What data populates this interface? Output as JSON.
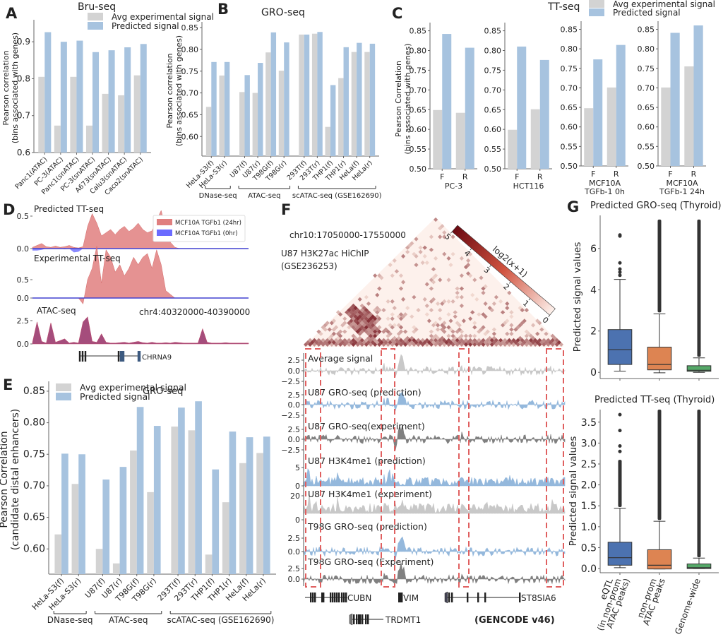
{
  "colors": {
    "experimental": "#d3d3d3",
    "predicted": "#a7c3df",
    "tt24": "#e07f7f",
    "tt0": "#6b6bff",
    "atac": "#9b3a6e",
    "box_eqtl": "#4c72b0",
    "box_nonprom": "#dd8452",
    "box_genome": "#55a868",
    "dashed_box": "#e06060",
    "track_avg": "#c8c8c8",
    "track_pred": "#94b8dc",
    "track_exp": "#808080"
  },
  "chart_data": [
    {
      "id": "A",
      "panel_letter": "A",
      "type": "bar",
      "title": "Bru-seq",
      "xlabel": "",
      "ylabel": "Pearson correlation\n(bins associated with genes)",
      "ylabel_lines": [
        "Pearson correlation",
        "(bins associated with genes)"
      ],
      "ylim": [
        0.6,
        0.95
      ],
      "yticks": [
        0.6,
        0.7,
        0.8,
        0.9
      ],
      "ytick_labels": [
        "0.6",
        "0.7",
        "0.8",
        "0.9"
      ],
      "legend": [
        "Avg experimental signal",
        "Predicted signal"
      ],
      "legend_position": "top-right",
      "categories": [
        "Panc1(ATAC)",
        "PC-3(ATAC)",
        "Panc1(snATAC)",
        "PC-3(snATAC)",
        "A673(snATAC)",
        "Calu3(snATAC)",
        "Caco2(snATAC)"
      ],
      "series": [
        {
          "name": "Avg experimental signal",
          "values": [
            0.805,
            0.673,
            0.805,
            0.673,
            0.759,
            0.755,
            0.809
          ]
        },
        {
          "name": "Predicted signal",
          "values": [
            0.926,
            0.9,
            0.903,
            0.872,
            0.877,
            0.885,
            0.894
          ]
        }
      ]
    },
    {
      "id": "B",
      "panel_letter": "B",
      "type": "bar",
      "title": "GRO-seq",
      "xlabel": "",
      "ylabel_lines": [
        "Pearson correlation",
        "(bins associated with genes)"
      ],
      "ylim": [
        0.555,
        0.855
      ],
      "yticks": [
        0.6,
        0.65,
        0.7,
        0.75,
        0.8,
        0.85
      ],
      "ytick_labels": [
        "0.60",
        "0.65",
        "0.70",
        "0.75",
        "0.80",
        "0.85"
      ],
      "categories": [
        "HeLa-S3(f)",
        "HeLa-S3(r)",
        "U87(f)",
        "U87(r)",
        "T98G(f)",
        "T98G(r)",
        "293T(f)",
        "293T(r)",
        "THP1(f)",
        "THP1(r)",
        "HeLa(f)",
        "HeLa(r)"
      ],
      "groups": [
        {
          "label": "DNase-seq",
          "members": [
            0,
            1
          ]
        },
        {
          "label": "ATAC-seq",
          "members": [
            2,
            3,
            4,
            5
          ]
        },
        {
          "label": "scATAC-seq (GSE162690)",
          "members": [
            6,
            7,
            8,
            9,
            10,
            11
          ]
        }
      ],
      "series": [
        {
          "name": "Avg experimental signal",
          "values": [
            0.668,
            0.74,
            0.702,
            0.7,
            0.793,
            0.751,
            0.834,
            0.836,
            0.622,
            0.734,
            0.794,
            0.794
          ]
        },
        {
          "name": "Predicted signal",
          "values": [
            0.771,
            0.771,
            0.741,
            0.769,
            0.839,
            0.816,
            0.834,
            0.84,
            0.718,
            0.805,
            0.815,
            0.813
          ]
        }
      ]
    },
    {
      "id": "C",
      "panel_letter": "C",
      "type": "bar",
      "title": "TT-seq",
      "ylabel_lines": [
        "Pearson Correlation",
        "(bins associated with genes)"
      ],
      "legend": [
        "Avg experimental signal",
        "Predicted signal"
      ],
      "legend_position": "top-right",
      "ylim": [
        0.5,
        0.86
      ],
      "yticks": [
        0.5,
        0.55,
        0.6,
        0.65,
        0.7,
        0.75,
        0.8,
        0.85
      ],
      "ytick_labels": [
        "0.50",
        "0.55",
        "0.60",
        "0.65",
        "0.70",
        "0.75",
        "0.80",
        "0.85"
      ],
      "subplots": [
        {
          "xlabel_lines": [
            "PC-3"
          ],
          "categories": [
            "F",
            "R"
          ],
          "series": [
            {
              "name": "Avg experimental signal",
              "values": [
                0.649,
                0.642
              ]
            },
            {
              "name": "Predicted signal",
              "values": [
                0.842,
                0.807
              ]
            }
          ]
        },
        {
          "xlabel_lines": [
            "HCT116"
          ],
          "categories": [
            "F",
            "R"
          ],
          "series": [
            {
              "name": "Avg experimental signal",
              "values": [
                0.599,
                0.651
              ]
            },
            {
              "name": "Predicted signal",
              "values": [
                0.81,
                0.776
              ]
            }
          ]
        },
        {
          "xlabel_lines": [
            "MCF10A",
            "TGFb-1 0h"
          ],
          "categories": [
            "F",
            "R"
          ],
          "series": [
            {
              "name": "Avg experimental signal",
              "values": [
                0.648,
                0.701
              ]
            },
            {
              "name": "Predicted signal",
              "values": [
                0.773,
                0.81
              ]
            }
          ]
        },
        {
          "xlabel_lines": [
            "MCF10A",
            "TGFb-1 24h"
          ],
          "categories": [
            "F",
            "R"
          ],
          "series": [
            {
              "name": "Avg experimental signal",
              "values": [
                0.701,
                0.755
              ]
            },
            {
              "name": "Predicted signal",
              "values": [
                0.841,
                0.86
              ]
            }
          ]
        }
      ]
    },
    {
      "id": "D",
      "panel_letter": "D",
      "type": "area",
      "region": "chr4:40320000-40390000",
      "legend": [
        "MCF10A TGFb1 (24hr)",
        "MCF10A TGFb1 (0hr)"
      ],
      "legend_position": "top-right",
      "tracks": [
        {
          "label": "Predicted TT-seq",
          "yticks": [
            "0.5",
            "0.0"
          ],
          "tt24": [
            0.02,
            0.05,
            0.08,
            0.03,
            0.02,
            0.04,
            0.02,
            0.03,
            0.05,
            0.02,
            0.01,
            0.03,
            0.35,
            0.55,
            0.4,
            0.2,
            0.25,
            0.3,
            0.22,
            0.3,
            0.35,
            0.27,
            0.32,
            0.4,
            0.3,
            0.25,
            0.28,
            0.45,
            0.6,
            0.3,
            0.1,
            0.02,
            0,
            0,
            0,
            0,
            0,
            0,
            0,
            0,
            0,
            0,
            0,
            0,
            0,
            0,
            0,
            0
          ],
          "tt0": [
            -0.03,
            -0.03,
            -0.02,
            0,
            0,
            0,
            0,
            -0.01,
            0,
            -0.06,
            -0.05,
            0,
            0,
            0,
            0,
            0,
            0,
            0,
            0,
            0,
            0,
            0,
            0,
            0,
            0,
            0,
            0,
            0,
            0,
            0,
            0,
            0,
            0,
            0,
            0,
            0,
            0,
            0,
            0,
            0,
            0,
            0,
            0,
            0,
            0,
            0,
            0,
            0
          ]
        },
        {
          "label": "Experimental TT-seq",
          "yticks": [
            "0.5",
            "0.0"
          ],
          "tt24": [
            0,
            0,
            0,
            0,
            0,
            0,
            0,
            0,
            0,
            0,
            0,
            -0.08,
            0.25,
            0.4,
            0.7,
            0.2,
            0.65,
            0.55,
            0.35,
            0.45,
            0.3,
            0.4,
            0.55,
            0.45,
            0.55,
            0.6,
            0.4,
            0.65,
            0.45,
            0.1,
            0.05,
            0,
            0,
            0,
            0,
            0,
            0,
            0,
            0,
            0,
            0,
            0,
            0,
            0,
            0,
            0,
            0,
            0
          ],
          "tt0": [
            0,
            0,
            0,
            0,
            0,
            0,
            0,
            0,
            0,
            0,
            0,
            0,
            0,
            0,
            0,
            0,
            0,
            0,
            0,
            0,
            0,
            0,
            0,
            0,
            0,
            0,
            0,
            0,
            0,
            0,
            0,
            0,
            0,
            0,
            0,
            0,
            0,
            0,
            0,
            0,
            0,
            0,
            0,
            0,
            0,
            0,
            0,
            0
          ]
        },
        {
          "label": "ATAC-seq",
          "yticks": [
            "2.5",
            "0.0"
          ],
          "values": [
            0.2,
            2.6,
            0.3,
            0.1,
            2.5,
            0.2,
            0.4,
            0.6,
            0.1,
            0.2,
            0.1,
            2.6,
            3.2,
            0.3,
            0.2,
            1.2,
            0.2,
            0.1,
            0.1,
            0.15,
            0.2,
            0.1,
            0.2,
            0.3,
            0.15,
            0.1,
            0.2,
            0.1,
            0.1,
            0.15,
            0.1,
            0.2,
            0.15,
            0.1,
            0.1,
            0.1,
            0.1,
            1.8,
            0.2,
            0.1,
            0.1,
            0.1,
            0.15,
            0.1,
            0.1,
            0.1,
            0.1,
            0.1
          ]
        }
      ],
      "gene": "CHRNA9"
    },
    {
      "id": "E",
      "panel_letter": "E",
      "type": "bar",
      "title": "GRO-seq",
      "ylabel_lines": [
        "Pearson Correlation",
        "(candidate distal enhancers)"
      ],
      "legend": [
        "Avg experimental signal",
        "Predicted signal"
      ],
      "legend_position": "top-left",
      "ylim": [
        0.56,
        0.86
      ],
      "yticks": [
        0.6,
        0.65,
        0.7,
        0.75,
        0.8,
        0.85
      ],
      "ytick_labels": [
        "0.60",
        "0.65",
        "0.70",
        "0.75",
        "0.80",
        "0.85"
      ],
      "categories": [
        "HeLa-S3(f)",
        "HeLa-S3(r)",
        "U87(f)",
        "U87(r)",
        "T98G(f)",
        "T98G(r)",
        "293T(f)",
        "293T(r)",
        "THP1(f)",
        "THP1(r)",
        "HeLa(f)",
        "HeLa(r)"
      ],
      "groups": [
        {
          "label": "DNase-seq",
          "members": [
            0,
            1
          ]
        },
        {
          "label": "ATAC-seq",
          "members": [
            2,
            3,
            4,
            5
          ]
        },
        {
          "label": "scATAC-seq (GSE162690)",
          "members": [
            6,
            7,
            8,
            9,
            10,
            11
          ]
        }
      ],
      "series": [
        {
          "name": "Avg experimental signal",
          "values": [
            0.623,
            0.703,
            0.6,
            0.577,
            0.756,
            0.69,
            0.794,
            0.788,
            0.591,
            0.674,
            0.736,
            0.752
          ]
        },
        {
          "name": "Predicted signal",
          "values": [
            0.751,
            0.75,
            0.71,
            0.73,
            0.825,
            0.795,
            0.824,
            0.834,
            0.726,
            0.786,
            0.777,
            0.778
          ]
        }
      ]
    },
    {
      "id": "F",
      "panel_letter": "F",
      "type": "heatmap",
      "region": "chr10:17050000-17550000",
      "dataset_lines": [
        "U87 H3K27ac HiChIP",
        "(GSE236253)"
      ],
      "colorbar_label": "log2(x+1)",
      "colorbar_ticks": [
        "0",
        "1",
        "2",
        "3",
        "4",
        "5"
      ],
      "colorbar_range": [
        0,
        5
      ],
      "tracks": [
        {
          "label": "Average signal",
          "yticks": [
            "2.5",
            "0.0",
            "−2.5"
          ],
          "color_key": "track_avg"
        },
        {
          "label": "U87 GRO-seq (prediction)",
          "yticks": [
            "2.5",
            "0.0",
            "−2.5"
          ],
          "color_key": "track_pred"
        },
        {
          "label": "U87 GRO-seq(experiment)",
          "yticks": [
            "2.5",
            "0.0",
            "−2.5"
          ],
          "color_key": "track_exp"
        },
        {
          "label": "U87 H3K4me1 (prediction)",
          "yticks": [
            "5",
            "0"
          ],
          "color_key": "track_pred"
        },
        {
          "label": "U87 H3K4me1 (experiment)",
          "yticks": [
            "20",
            "0"
          ],
          "color_key": "track_avg"
        },
        {
          "label": "T98G GRO-seq (prediction)",
          "yticks": [
            "2.5",
            "0.0"
          ],
          "color_key": "track_pred"
        },
        {
          "label": "T98G GRO-seq (Experiment)",
          "yticks": [
            "2.5",
            "0.0"
          ],
          "color_key": "track_exp"
        }
      ],
      "genes": [
        "CUBN",
        "VIM",
        "ST8SIA6",
        "TRDMT1"
      ],
      "annotation_source": "(GENCODE v46)"
    },
    {
      "id": "G1",
      "panel_letter": "G",
      "type": "box",
      "title": "Predicted GRO-seq (Thyroid)",
      "ylabel": "Predicted signal values",
      "ylim": [
        -0.3,
        7.6
      ],
      "yticks": [
        0,
        2,
        4,
        6
      ],
      "ytick_labels": [
        "0",
        "2",
        "4",
        "6"
      ],
      "categories": [
        "eQTL (in non-prom ATAC peaks)",
        "non-prom ATAC peaks",
        "Genome-wide"
      ],
      "boxes": [
        {
          "q1": 0.38,
          "median": 1.1,
          "q3": 2.07,
          "whisker_low": 0.06,
          "whisker_high": 4.5,
          "outliers": [
            4.7,
            4.85,
            5.0,
            5.3,
            6.6,
            6.65
          ]
        },
        {
          "q1": 0.12,
          "median": 0.38,
          "q3": 1.22,
          "whisker_low": -0.02,
          "whisker_high": 2.83,
          "outlier_range": [
            2.9,
            7.4
          ]
        },
        {
          "q1": 0.05,
          "median": 0.1,
          "q3": 0.32,
          "whisker_low": 0.0,
          "whisker_high": 0.7,
          "outlier_range": [
            0.75,
            7.4
          ]
        }
      ]
    },
    {
      "id": "G2",
      "panel_letter": "",
      "type": "box",
      "title": "Predicted TT-seq (Thyroid)",
      "ylabel": "Predicted signal values",
      "ylim": [
        -0.1,
        3.8
      ],
      "yticks": [
        0.0,
        0.5,
        1.0,
        1.5,
        2.0,
        2.5,
        3.0,
        3.5
      ],
      "ytick_labels": [
        "0.0",
        "0.5",
        "1.0",
        "1.5",
        "2.0",
        "2.5",
        "3.0",
        "3.5"
      ],
      "categories": [
        "eQTL (in non-prom ATAC peaks)",
        "non-prom ATAC peaks",
        "Genome-wide"
      ],
      "xtick_label_lines": [
        [
          "eQTL",
          "(in non-prom",
          "ATAC peaks)"
        ],
        [
          "non-prom",
          "ATAC peaks"
        ],
        [
          "Genome-wide"
        ]
      ],
      "boxes": [
        {
          "q1": 0.08,
          "median": 0.26,
          "q3": 0.63,
          "whisker_low": 0.02,
          "whisker_high": 1.44,
          "outlier_range": [
            1.47,
            2.6
          ],
          "outliers": [
            2.8,
            2.93,
            3.3,
            3.68
          ]
        },
        {
          "q1": -0.01,
          "median": 0.08,
          "q3": 0.45,
          "whisker_low": -0.01,
          "whisker_high": 1.13,
          "outlier_range": [
            1.16,
            3.8
          ]
        },
        {
          "q1": 0.0,
          "median": 0.02,
          "q3": 0.11,
          "whisker_low": 0.0,
          "whisker_high": 0.25,
          "outlier_range": [
            0.27,
            3.8
          ]
        }
      ]
    }
  ]
}
